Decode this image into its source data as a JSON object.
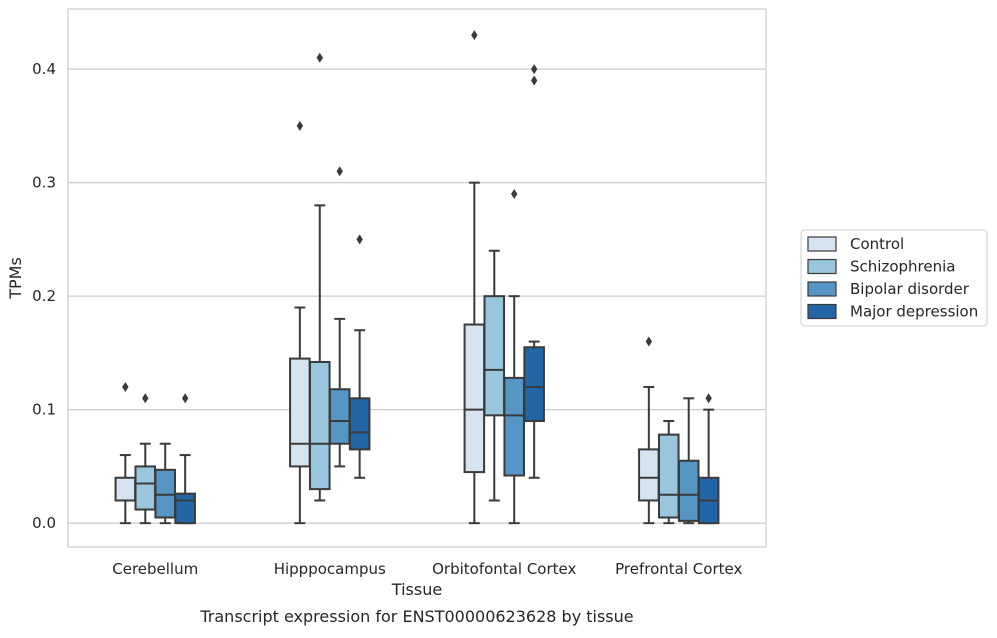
{
  "caption": "Transcript expression for ENST00000623628 by tissue",
  "chart_data": {
    "type": "boxplot",
    "title": "",
    "xlabel": "Tissue",
    "ylabel": "TPMs",
    "categories": [
      "Cerebellum",
      "Hipppocampus",
      "Orbitofontal Cortex",
      "Prefrontal Cortex"
    ],
    "ylim": [
      -0.021,
      0.453
    ],
    "yticks": [
      0.0,
      0.1,
      0.2,
      0.3,
      0.4
    ],
    "ytick_labels": [
      "0.0",
      "0.1",
      "0.2",
      "0.3",
      "0.4"
    ],
    "grid": "horizontal",
    "legend_position": "right",
    "series": [
      {
        "name": "Control",
        "color": "#d6e4f2",
        "boxes": [
          {
            "whisker_low": 0.0,
            "q1": 0.02,
            "median": 0.02,
            "q3": 0.04,
            "whisker_high": 0.06,
            "outliers": [
              0.12
            ]
          },
          {
            "whisker_low": 0.0,
            "q1": 0.05,
            "median": 0.07,
            "q3": 0.145,
            "whisker_high": 0.19,
            "outliers": [
              0.35
            ]
          },
          {
            "whisker_low": 0.0,
            "q1": 0.045,
            "median": 0.1,
            "q3": 0.175,
            "whisker_high": 0.3,
            "outliers": [
              0.43
            ]
          },
          {
            "whisker_low": 0.0,
            "q1": 0.02,
            "median": 0.04,
            "q3": 0.065,
            "whisker_high": 0.12,
            "outliers": [
              0.16
            ]
          }
        ]
      },
      {
        "name": "Schizophrenia",
        "color": "#9ac6dd",
        "boxes": [
          {
            "whisker_low": 0.0,
            "q1": 0.012,
            "median": 0.035,
            "q3": 0.05,
            "whisker_high": 0.07,
            "outliers": [
              0.11
            ]
          },
          {
            "whisker_low": 0.02,
            "q1": 0.03,
            "median": 0.07,
            "q3": 0.142,
            "whisker_high": 0.28,
            "outliers": [
              0.41
            ]
          },
          {
            "whisker_low": 0.02,
            "q1": 0.095,
            "median": 0.135,
            "q3": 0.2,
            "whisker_high": 0.24,
            "outliers": []
          },
          {
            "whisker_low": 0.0,
            "q1": 0.005,
            "median": 0.025,
            "q3": 0.078,
            "whisker_high": 0.09,
            "outliers": []
          }
        ]
      },
      {
        "name": "Bipolar disorder",
        "color": "#5596c4",
        "boxes": [
          {
            "whisker_low": 0.0,
            "q1": 0.005,
            "median": 0.025,
            "q3": 0.047,
            "whisker_high": 0.07,
            "outliers": []
          },
          {
            "whisker_low": 0.05,
            "q1": 0.07,
            "median": 0.09,
            "q3": 0.118,
            "whisker_high": 0.18,
            "outliers": [
              0.31
            ]
          },
          {
            "whisker_low": 0.0,
            "q1": 0.042,
            "median": 0.095,
            "q3": 0.128,
            "whisker_high": 0.2,
            "outliers": [
              0.29
            ]
          },
          {
            "whisker_low": 0.0,
            "q1": 0.002,
            "median": 0.025,
            "q3": 0.055,
            "whisker_high": 0.11,
            "outliers": []
          }
        ]
      },
      {
        "name": "Major depression",
        "color": "#2366a8",
        "boxes": [
          {
            "whisker_low": 0.0,
            "q1": 0.0,
            "median": 0.02,
            "q3": 0.026,
            "whisker_high": 0.06,
            "outliers": [
              0.11
            ]
          },
          {
            "whisker_low": 0.04,
            "q1": 0.065,
            "median": 0.08,
            "q3": 0.11,
            "whisker_high": 0.17,
            "outliers": [
              0.25
            ]
          },
          {
            "whisker_low": 0.04,
            "q1": 0.09,
            "median": 0.12,
            "q3": 0.155,
            "whisker_high": 0.16,
            "outliers": [
              0.39,
              0.4
            ]
          },
          {
            "whisker_low": 0.0,
            "q1": 0.0,
            "median": 0.02,
            "q3": 0.04,
            "whisker_high": 0.1,
            "outliers": [
              0.11
            ]
          }
        ]
      }
    ]
  }
}
